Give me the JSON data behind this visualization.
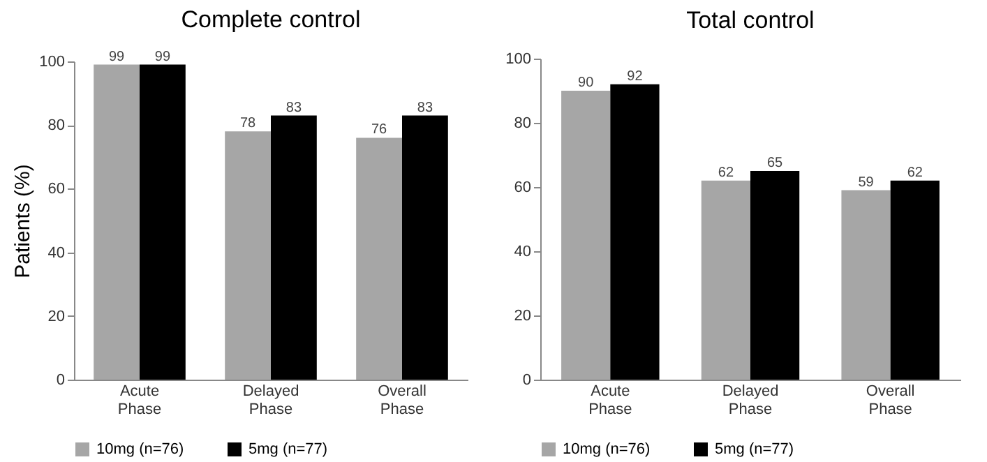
{
  "chart_data": [
    {
      "type": "bar",
      "title": "Complete control",
      "ylabel": "Patients (%)",
      "categories": [
        "Acute Phase",
        "Delayed Phase",
        "Overall Phase"
      ],
      "series": [
        {
          "name": "10mg (n=76)",
          "color": "#a6a6a6",
          "values": [
            99,
            78,
            76
          ]
        },
        {
          "name": "5mg (n=77)",
          "color": "#000000",
          "values": [
            99,
            83,
            83
          ]
        }
      ],
      "ylim": [
        0,
        100
      ],
      "yticks": [
        0,
        20,
        40,
        60,
        80,
        100
      ],
      "legend": "bottom",
      "data_labels": true
    },
    {
      "type": "bar",
      "title": "Total control",
      "categories": [
        "Acute Phase",
        "Delayed Phase",
        "Overall Phase"
      ],
      "series": [
        {
          "name": "10mg (n=76)",
          "color": "#a6a6a6",
          "values": [
            90,
            62,
            59
          ]
        },
        {
          "name": "5mg (n=77)",
          "color": "#000000",
          "values": [
            92,
            65,
            62
          ]
        }
      ],
      "ylim": [
        0,
        100
      ],
      "yticks": [
        0,
        20,
        40,
        60,
        80,
        100
      ],
      "legend": "bottom",
      "data_labels": true
    }
  ]
}
